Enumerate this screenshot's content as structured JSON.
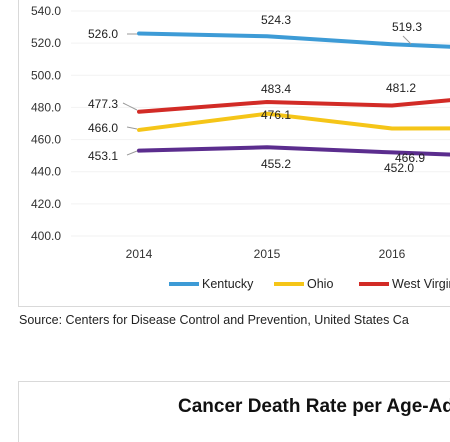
{
  "chart_data": {
    "type": "line",
    "categories": [
      "2014",
      "2015",
      "2016"
    ],
    "ylim": [
      400,
      540
    ],
    "yticks": [
      "400.0",
      "420.0",
      "440.0",
      "460.0",
      "480.0",
      "500.0",
      "520.0",
      "540.0"
    ],
    "grid": true,
    "legend_position": "bottom",
    "series": [
      {
        "name": "Kentucky",
        "color": "#3d9bd6",
        "values": [
          526.0,
          524.3,
          519.3
        ],
        "labels": [
          "526.0",
          "524.3",
          "519.3"
        ],
        "continues_to": 517.5
      },
      {
        "name": "Ohio",
        "color": "#f5c518",
        "values": [
          466.0,
          476.1,
          466.9
        ],
        "labels": [
          "466.0",
          "476.1",
          "466.9"
        ],
        "continues_to": 467.0
      },
      {
        "name": "West Virgin",
        "color": "#d22b26",
        "values": [
          477.3,
          483.4,
          481.2
        ],
        "labels": [
          "477.3",
          "483.4",
          "481.2"
        ],
        "continues_to": 485.0
      },
      {
        "name": "",
        "color": "#5b2d8e",
        "values": [
          453.1,
          455.2,
          452.0
        ],
        "labels": [
          "453.1",
          "455.2",
          "452.0"
        ],
        "continues_to": 450.5
      }
    ]
  },
  "source_note": "Source: Centers for Disease Control and Prevention, United States Ca",
  "next_chart_title": "Cancer Death Rate per Age-Adj"
}
